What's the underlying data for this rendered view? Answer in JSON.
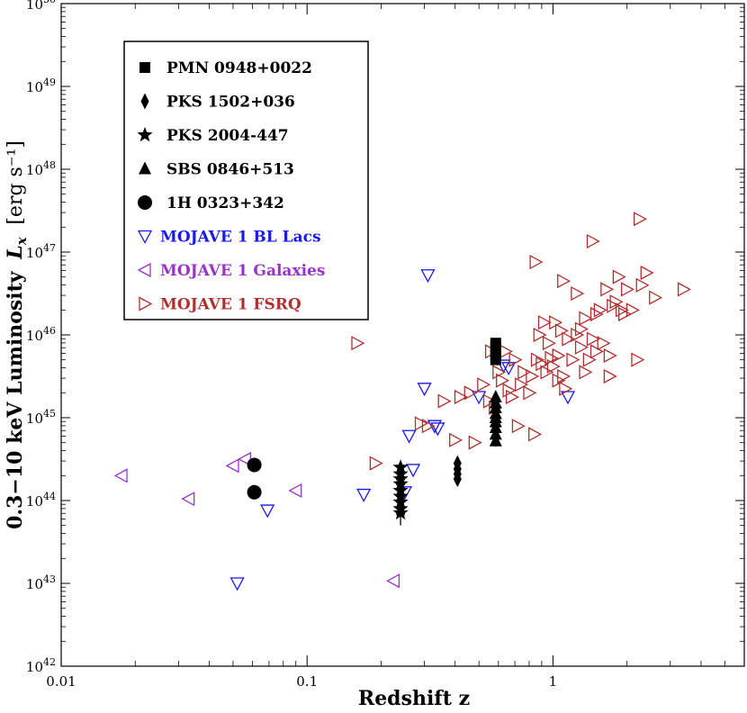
{
  "chart_data": {
    "type": "scatter",
    "title": "",
    "xlabel": "Redshift z",
    "ylabel_prefix": "0.3−10 keV Luminosity",
    "ylabel_symbol": "L",
    "ylabel_subscript": "x",
    "ylabel_unit": "[erg s⁻¹]",
    "x_scale": "log",
    "y_scale": "log",
    "xlim": [
      0.01,
      6.0
    ],
    "ylim_log10": [
      42,
      50
    ],
    "x_ticks": [
      {
        "value": 0.01,
        "label": "0.01"
      },
      {
        "value": 0.1,
        "label": "0.1"
      },
      {
        "value": 1,
        "label": "1"
      }
    ],
    "y_ticks": [
      {
        "exp": 42,
        "label_base": "10",
        "label_exp": "42"
      },
      {
        "exp": 43,
        "label_base": "10",
        "label_exp": "43"
      },
      {
        "exp": 44,
        "label_base": "10",
        "label_exp": "44"
      },
      {
        "exp": 45,
        "label_base": "10",
        "label_exp": "45"
      },
      {
        "exp": 46,
        "label_base": "10",
        "label_exp": "46"
      },
      {
        "exp": 47,
        "label_base": "10",
        "label_exp": "47"
      },
      {
        "exp": 48,
        "label_base": "10",
        "label_exp": "48"
      },
      {
        "exp": 49,
        "label_base": "10",
        "label_exp": "49"
      },
      {
        "exp": 50,
        "label_base": "10",
        "label_exp": "50"
      }
    ],
    "legend_position": "top-left",
    "series": [
      {
        "name": "PMN 0948+0022",
        "marker": "square",
        "color": "#000000",
        "label_color": "#000000",
        "points": [
          [
            0.585,
            45.9
          ],
          [
            0.585,
            45.85
          ],
          [
            0.585,
            45.8
          ],
          [
            0.585,
            45.75
          ],
          [
            0.585,
            45.7
          ]
        ]
      },
      {
        "name": "PKS 1502+036",
        "marker": "diamond",
        "color": "#000000",
        "label_color": "#000000",
        "points": [
          [
            0.409,
            44.45
          ],
          [
            0.409,
            44.38
          ],
          [
            0.409,
            44.32
          ],
          [
            0.409,
            44.26
          ]
        ],
        "errors": [
          [
            0.409,
            44.2,
            44.5
          ]
        ]
      },
      {
        "name": "PKS 2004-447",
        "marker": "star",
        "color": "#000000",
        "label_color": "#000000",
        "points": [
          [
            0.24,
            44.4
          ],
          [
            0.24,
            44.32
          ],
          [
            0.24,
            44.26
          ],
          [
            0.24,
            44.2
          ],
          [
            0.24,
            44.12
          ],
          [
            0.24,
            44.05
          ],
          [
            0.24,
            43.98
          ],
          [
            0.24,
            43.9
          ],
          [
            0.24,
            43.85
          ]
        ],
        "errors": [
          [
            0.24,
            43.7,
            44.48
          ]
        ]
      },
      {
        "name": "SBS 0846+513",
        "marker": "triangle-up",
        "color": "#000000",
        "label_color": "#000000",
        "points": [
          [
            0.585,
            45.25
          ],
          [
            0.585,
            45.18
          ],
          [
            0.585,
            45.12
          ],
          [
            0.585,
            45.05
          ],
          [
            0.585,
            45.0
          ],
          [
            0.585,
            44.95
          ],
          [
            0.585,
            44.88
          ],
          [
            0.585,
            44.8
          ],
          [
            0.585,
            44.72
          ]
        ],
        "errors": [
          [
            0.585,
            44.65,
            45.3
          ]
        ]
      },
      {
        "name": "1H 0323+342",
        "marker": "circle",
        "color": "#000000",
        "label_color": "#000000",
        "points": [
          [
            0.061,
            44.43
          ],
          [
            0.061,
            44.1
          ]
        ]
      },
      {
        "name": "MOJAVE 1 BL Lacs",
        "marker": "triangle-down-open",
        "color": "#1a1aee",
        "label_color": "#1a1aee",
        "points": [
          [
            0.052,
            43.0
          ],
          [
            0.069,
            43.88
          ],
          [
            0.17,
            44.07
          ],
          [
            0.31,
            46.72
          ],
          [
            0.3,
            45.35
          ],
          [
            0.26,
            44.78
          ],
          [
            0.27,
            44.37
          ],
          [
            0.33,
            44.9
          ],
          [
            0.34,
            44.87
          ],
          [
            0.5,
            45.25
          ],
          [
            0.63,
            45.63
          ],
          [
            0.66,
            45.6
          ],
          [
            1.15,
            45.25
          ],
          [
            0.25,
            44.1
          ]
        ]
      },
      {
        "name": "MOJAVE 1 Galaxies",
        "marker": "triangle-left-open",
        "color": "#9933cc",
        "label_color": "#9933cc",
        "points": [
          [
            0.0176,
            44.3
          ],
          [
            0.033,
            44.02
          ],
          [
            0.05,
            44.42
          ],
          [
            0.056,
            44.5
          ],
          [
            0.09,
            44.12
          ],
          [
            0.225,
            43.03
          ]
        ]
      },
      {
        "name": "MOJAVE 1 FSRQ",
        "marker": "triangle-right-open",
        "color": "#b03030",
        "label_color": "#b03030",
        "points": [
          [
            0.16,
            45.9
          ],
          [
            0.19,
            44.45
          ],
          [
            0.29,
            44.93
          ],
          [
            0.31,
            44.9
          ],
          [
            0.36,
            45.2
          ],
          [
            0.4,
            44.73
          ],
          [
            0.42,
            45.25
          ],
          [
            0.46,
            45.3
          ],
          [
            0.48,
            44.7
          ],
          [
            0.52,
            45.4
          ],
          [
            0.55,
            45.2
          ],
          [
            0.56,
            45.8
          ],
          [
            0.58,
            45.12
          ],
          [
            0.6,
            45.55
          ],
          [
            0.62,
            45.45
          ],
          [
            0.64,
            45.8
          ],
          [
            0.66,
            45.33
          ],
          [
            0.68,
            45.25
          ],
          [
            0.7,
            45.7
          ],
          [
            0.72,
            44.9
          ],
          [
            0.74,
            45.4
          ],
          [
            0.76,
            45.55
          ],
          [
            0.8,
            45.3
          ],
          [
            0.84,
            44.8
          ],
          [
            0.86,
            45.7
          ],
          [
            0.88,
            46.0
          ],
          [
            0.9,
            45.65
          ],
          [
            0.92,
            46.15
          ],
          [
            0.94,
            45.55
          ],
          [
            0.96,
            45.9
          ],
          [
            0.98,
            45.72
          ],
          [
            1.0,
            45.62
          ],
          [
            1.02,
            46.15
          ],
          [
            1.05,
            45.75
          ],
          [
            1.08,
            46.05
          ],
          [
            1.1,
            45.5
          ],
          [
            1.12,
            45.35
          ],
          [
            1.15,
            45.95
          ],
          [
            1.2,
            45.7
          ],
          [
            1.25,
            46.0
          ],
          [
            1.3,
            45.85
          ],
          [
            1.35,
            46.2
          ],
          [
            1.4,
            45.7
          ],
          [
            1.45,
            45.95
          ],
          [
            1.5,
            45.8
          ],
          [
            1.55,
            46.3
          ],
          [
            1.6,
            45.9
          ],
          [
            1.7,
            45.75
          ],
          [
            1.75,
            46.35
          ],
          [
            1.8,
            46.4
          ],
          [
            1.85,
            46.7
          ],
          [
            1.9,
            46.3
          ],
          [
            2.0,
            46.55
          ],
          [
            2.1,
            46.3
          ],
          [
            2.2,
            45.7
          ],
          [
            2.3,
            46.6
          ],
          [
            2.4,
            46.75
          ],
          [
            2.6,
            46.45
          ],
          [
            0.85,
            46.88
          ],
          [
            1.1,
            46.65
          ],
          [
            1.25,
            46.5
          ],
          [
            1.45,
            47.13
          ],
          [
            1.65,
            46.55
          ],
          [
            2.25,
            47.4
          ],
          [
            3.4,
            46.55
          ],
          [
            1.3,
            46.07
          ],
          [
            1.5,
            46.25
          ],
          [
            1.95,
            46.25
          ],
          [
            0.82,
            45.5
          ],
          [
            1.05,
            45.45
          ],
          [
            1.35,
            45.55
          ],
          [
            1.7,
            45.5
          ]
        ]
      }
    ]
  }
}
